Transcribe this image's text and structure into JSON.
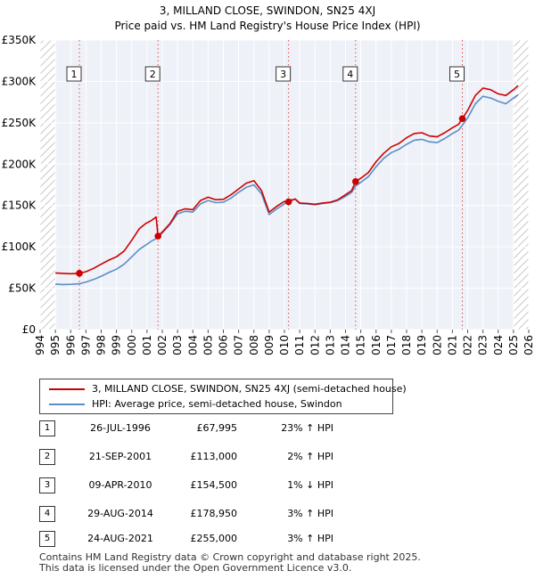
{
  "title": "3, MILLAND CLOSE, SWINDON, SN25 4XJ",
  "subtitle": "Price paid vs. HM Land Registry's House Price Index (HPI)",
  "chart_data": {
    "type": "line",
    "x_range": [
      1994.0,
      2026.0
    ],
    "y_range": [
      0,
      350000
    ],
    "y_ticks": [
      {
        "value": 0,
        "label": "£0"
      },
      {
        "value": 50000,
        "label": "£50K"
      },
      {
        "value": 100000,
        "label": "£100K"
      },
      {
        "value": 150000,
        "label": "£150K"
      },
      {
        "value": 200000,
        "label": "£200K"
      },
      {
        "value": 250000,
        "label": "£250K"
      },
      {
        "value": 300000,
        "label": "£300K"
      },
      {
        "value": 350000,
        "label": "£350K"
      }
    ],
    "x_ticks": [
      "1994",
      "1995",
      "1996",
      "1997",
      "1998",
      "1999",
      "2000",
      "2001",
      "2002",
      "2003",
      "2004",
      "2005",
      "2006",
      "2007",
      "2008",
      "2009",
      "2010",
      "2011",
      "2012",
      "2013",
      "2014",
      "2015",
      "2016",
      "2017",
      "2018",
      "2019",
      "2020",
      "2021",
      "2022",
      "2023",
      "2024",
      "2025",
      "2026"
    ],
    "hatched_regions": [
      [
        1994.0,
        1995.0
      ],
      [
        2025.0,
        2026.0
      ]
    ],
    "grid": true,
    "series": [
      {
        "name": "3, MILLAND CLOSE, SWINDON, SN25 4XJ (semi-detached house)",
        "color": "#cc0000",
        "points": [
          [
            1995.0,
            68500
          ],
          [
            1995.5,
            68000
          ],
          [
            1996.0,
            67500
          ],
          [
            1996.57,
            67995
          ],
          [
            1997.0,
            70000
          ],
          [
            1997.5,
            74000
          ],
          [
            1998.0,
            79000
          ],
          [
            1998.5,
            84000
          ],
          [
            1999.0,
            88000
          ],
          [
            1999.5,
            95000
          ],
          [
            2000.0,
            108000
          ],
          [
            2000.5,
            122000
          ],
          [
            2000.9,
            128000
          ],
          [
            2001.3,
            132000
          ],
          [
            2001.6,
            136000
          ],
          [
            2001.72,
            113000
          ],
          [
            2002.0,
            118000
          ],
          [
            2002.5,
            128000
          ],
          [
            2003.0,
            143000
          ],
          [
            2003.5,
            146000
          ],
          [
            2004.0,
            145000
          ],
          [
            2004.5,
            156000
          ],
          [
            2005.0,
            160000
          ],
          [
            2005.5,
            157000
          ],
          [
            2006.0,
            157500
          ],
          [
            2006.5,
            163000
          ],
          [
            2007.0,
            170000
          ],
          [
            2007.5,
            177000
          ],
          [
            2008.0,
            180000
          ],
          [
            2008.5,
            168000
          ],
          [
            2009.0,
            142000
          ],
          [
            2009.5,
            149000
          ],
          [
            2010.0,
            155000
          ],
          [
            2010.27,
            154500
          ],
          [
            2010.7,
            158000
          ],
          [
            2011.0,
            153000
          ],
          [
            2011.5,
            152500
          ],
          [
            2012.0,
            151500
          ],
          [
            2012.5,
            153000
          ],
          [
            2013.0,
            154000
          ],
          [
            2013.5,
            157000
          ],
          [
            2014.0,
            163000
          ],
          [
            2014.4,
            168000
          ],
          [
            2014.66,
            178950
          ],
          [
            2015.0,
            183000
          ],
          [
            2015.5,
            190000
          ],
          [
            2016.0,
            203000
          ],
          [
            2016.5,
            213000
          ],
          [
            2017.0,
            221000
          ],
          [
            2017.5,
            225000
          ],
          [
            2018.0,
            232000
          ],
          [
            2018.5,
            237000
          ],
          [
            2019.0,
            238000
          ],
          [
            2019.5,
            234000
          ],
          [
            2020.0,
            233000
          ],
          [
            2020.5,
            238000
          ],
          [
            2021.0,
            244000
          ],
          [
            2021.4,
            248000
          ],
          [
            2021.65,
            255000
          ],
          [
            2022.0,
            265000
          ],
          [
            2022.5,
            283000
          ],
          [
            2023.0,
            292000
          ],
          [
            2023.5,
            290000
          ],
          [
            2024.0,
            285000
          ],
          [
            2024.5,
            283000
          ],
          [
            2025.0,
            290000
          ],
          [
            2025.3,
            295000
          ]
        ]
      },
      {
        "name": "HPI: Average price, semi-detached house, Swindon",
        "color": "#5b8ec9",
        "points": [
          [
            1995.0,
            55000
          ],
          [
            1995.5,
            54500
          ],
          [
            1996.0,
            54700
          ],
          [
            1996.57,
            55300
          ],
          [
            1997.0,
            57500
          ],
          [
            1997.5,
            60500
          ],
          [
            1998.0,
            64500
          ],
          [
            1998.5,
            69000
          ],
          [
            1999.0,
            73000
          ],
          [
            1999.5,
            79000
          ],
          [
            2000.0,
            88000
          ],
          [
            2000.5,
            97000
          ],
          [
            2000.9,
            102000
          ],
          [
            2001.3,
            107000
          ],
          [
            2001.6,
            110000
          ],
          [
            2001.72,
            111000
          ],
          [
            2002.0,
            117000
          ],
          [
            2002.5,
            127000
          ],
          [
            2003.0,
            140000
          ],
          [
            2003.5,
            143000
          ],
          [
            2004.0,
            142000
          ],
          [
            2004.5,
            152000
          ],
          [
            2005.0,
            156000
          ],
          [
            2005.5,
            153500
          ],
          [
            2006.0,
            154000
          ],
          [
            2006.5,
            159000
          ],
          [
            2007.0,
            166000
          ],
          [
            2007.5,
            172000
          ],
          [
            2008.0,
            175000
          ],
          [
            2008.5,
            164000
          ],
          [
            2009.0,
            139000
          ],
          [
            2009.5,
            146000
          ],
          [
            2010.0,
            152000
          ],
          [
            2010.27,
            156500
          ],
          [
            2010.7,
            157500
          ],
          [
            2011.0,
            152500
          ],
          [
            2011.5,
            152000
          ],
          [
            2012.0,
            151000
          ],
          [
            2012.5,
            152500
          ],
          [
            2013.0,
            153500
          ],
          [
            2013.5,
            156000
          ],
          [
            2014.0,
            161000
          ],
          [
            2014.4,
            166000
          ],
          [
            2014.66,
            173500
          ],
          [
            2015.0,
            178000
          ],
          [
            2015.5,
            185000
          ],
          [
            2016.0,
            197000
          ],
          [
            2016.5,
            207000
          ],
          [
            2017.0,
            214000
          ],
          [
            2017.5,
            218000
          ],
          [
            2018.0,
            224000
          ],
          [
            2018.5,
            229000
          ],
          [
            2019.0,
            230000
          ],
          [
            2019.5,
            227000
          ],
          [
            2020.0,
            226000
          ],
          [
            2020.5,
            231000
          ],
          [
            2021.0,
            237000
          ],
          [
            2021.4,
            241000
          ],
          [
            2021.65,
            247000
          ],
          [
            2022.0,
            256000
          ],
          [
            2022.5,
            273000
          ],
          [
            2023.0,
            282000
          ],
          [
            2023.5,
            280000
          ],
          [
            2024.0,
            276000
          ],
          [
            2024.5,
            273000
          ],
          [
            2025.0,
            280000
          ],
          [
            2025.3,
            284000
          ]
        ]
      }
    ],
    "sales": [
      {
        "label": "1",
        "x": 1996.57,
        "price": 67995
      },
      {
        "label": "2",
        "x": 2001.72,
        "price": 113000
      },
      {
        "label": "3",
        "x": 2010.27,
        "price": 154500
      },
      {
        "label": "4",
        "x": 2014.66,
        "price": 178950
      },
      {
        "label": "5",
        "x": 2021.65,
        "price": 255000
      }
    ]
  },
  "legend": {
    "property": "3, MILLAND CLOSE, SWINDON, SN25 4XJ (semi-detached house)",
    "hpi": "HPI: Average price, semi-detached house, Swindon",
    "property_color": "#cc0000",
    "hpi_color": "#5b8ec9"
  },
  "sales_table": [
    {
      "num": "1",
      "date": "26-JUL-1996",
      "price": "£67,995",
      "hpi": "23% ↑ HPI"
    },
    {
      "num": "2",
      "date": "21-SEP-2001",
      "price": "£113,000",
      "hpi": "2% ↑ HPI"
    },
    {
      "num": "3",
      "date": "09-APR-2010",
      "price": "£154,500",
      "hpi": "1% ↓ HPI"
    },
    {
      "num": "4",
      "date": "29-AUG-2014",
      "price": "£178,950",
      "hpi": "3% ↑ HPI"
    },
    {
      "num": "5",
      "date": "24-AUG-2021",
      "price": "£255,000",
      "hpi": "3% ↑ HPI"
    }
  ],
  "footer": {
    "line1": "Contains HM Land Registry data © Crown copyright and database right 2025.",
    "line2": "This data is licensed under the Open Government Licence v3.0."
  }
}
